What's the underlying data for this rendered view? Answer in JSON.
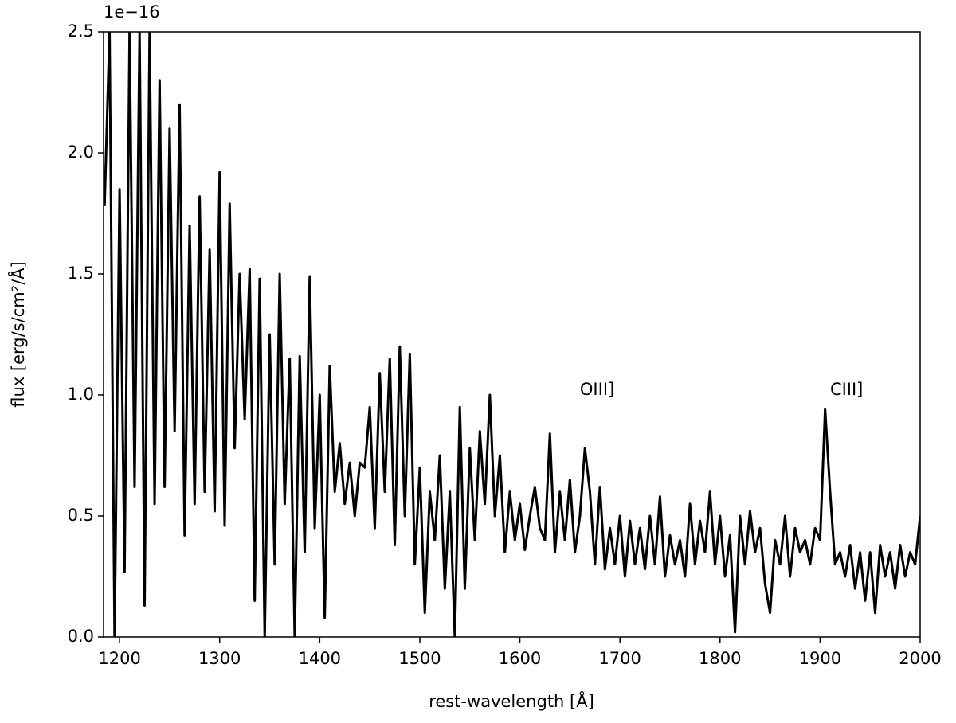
{
  "chart_data": {
    "type": "line",
    "xlabel": "rest-wavelength [Å]",
    "ylabel": "flux [erg/s/cm²/Å]",
    "offset_label": "1e−16",
    "color": "#000000",
    "x": [
      1185,
      1190,
      1195,
      1200,
      1205,
      1210,
      1215,
      1220,
      1225,
      1230,
      1235,
      1240,
      1245,
      1250,
      1255,
      1260,
      1265,
      1270,
      1275,
      1280,
      1285,
      1290,
      1295,
      1300,
      1305,
      1310,
      1315,
      1320,
      1325,
      1330,
      1335,
      1340,
      1345,
      1350,
      1355,
      1360,
      1365,
      1370,
      1375,
      1380,
      1385,
      1390,
      1395,
      1400,
      1405,
      1410,
      1415,
      1420,
      1425,
      1430,
      1435,
      1440,
      1445,
      1450,
      1455,
      1460,
      1465,
      1470,
      1475,
      1480,
      1485,
      1490,
      1495,
      1500,
      1505,
      1510,
      1515,
      1520,
      1525,
      1530,
      1535,
      1540,
      1545,
      1550,
      1555,
      1560,
      1565,
      1570,
      1575,
      1580,
      1585,
      1590,
      1595,
      1600,
      1605,
      1610,
      1615,
      1620,
      1625,
      1630,
      1635,
      1640,
      1645,
      1650,
      1655,
      1660,
      1665,
      1670,
      1675,
      1680,
      1685,
      1690,
      1695,
      1700,
      1705,
      1710,
      1715,
      1720,
      1725,
      1730,
      1735,
      1740,
      1745,
      1750,
      1755,
      1760,
      1765,
      1770,
      1775,
      1780,
      1785,
      1790,
      1795,
      1800,
      1805,
      1810,
      1815,
      1820,
      1825,
      1830,
      1835,
      1840,
      1845,
      1850,
      1855,
      1860,
      1865,
      1870,
      1875,
      1880,
      1885,
      1890,
      1895,
      1900,
      1905,
      1910,
      1915,
      1920,
      1925,
      1930,
      1935,
      1940,
      1945,
      1950,
      1955,
      1960,
      1965,
      1970,
      1975,
      1980,
      1985,
      1990,
      1995,
      2000
    ],
    "values": [
      1.78,
      2.5,
      0.0,
      1.85,
      0.27,
      2.5,
      0.62,
      2.5,
      0.13,
      2.5,
      0.55,
      2.3,
      0.62,
      2.1,
      0.85,
      2.2,
      0.42,
      1.7,
      0.55,
      1.82,
      0.6,
      1.6,
      0.52,
      1.92,
      0.46,
      1.79,
      0.78,
      1.5,
      0.9,
      1.52,
      0.15,
      1.48,
      0.0,
      1.25,
      0.3,
      1.5,
      0.55,
      1.15,
      0.0,
      1.16,
      0.35,
      1.49,
      0.45,
      1.0,
      0.08,
      1.12,
      0.6,
      0.8,
      0.55,
      0.72,
      0.5,
      0.72,
      0.7,
      0.95,
      0.45,
      1.09,
      0.6,
      1.15,
      0.38,
      1.2,
      0.5,
      1.17,
      0.3,
      0.7,
      0.1,
      0.6,
      0.4,
      0.75,
      0.2,
      0.6,
      0.0,
      0.95,
      0.2,
      0.78,
      0.4,
      0.85,
      0.55,
      1.0,
      0.5,
      0.75,
      0.35,
      0.6,
      0.4,
      0.55,
      0.36,
      0.5,
      0.62,
      0.45,
      0.4,
      0.84,
      0.35,
      0.6,
      0.4,
      0.65,
      0.35,
      0.5,
      0.78,
      0.6,
      0.3,
      0.62,
      0.28,
      0.45,
      0.3,
      0.5,
      0.25,
      0.48,
      0.3,
      0.45,
      0.28,
      0.5,
      0.3,
      0.58,
      0.25,
      0.42,
      0.3,
      0.4,
      0.25,
      0.55,
      0.3,
      0.48,
      0.35,
      0.6,
      0.3,
      0.5,
      0.25,
      0.42,
      0.02,
      0.5,
      0.3,
      0.52,
      0.35,
      0.45,
      0.22,
      0.1,
      0.4,
      0.3,
      0.5,
      0.25,
      0.45,
      0.35,
      0.4,
      0.3,
      0.45,
      0.4,
      0.94,
      0.6,
      0.3,
      0.35,
      0.25,
      0.38,
      0.2,
      0.35,
      0.15,
      0.35,
      0.1,
      0.38,
      0.25,
      0.35,
      0.2,
      0.38,
      0.25,
      0.35,
      0.3,
      0.5
    ],
    "xlim": [
      1184,
      2000
    ],
    "ylim": [
      0,
      2.5
    ],
    "xticks": [
      1200,
      1300,
      1400,
      1500,
      1600,
      1700,
      1800,
      1900,
      2000
    ],
    "yticks": [
      {
        "value": 0,
        "label": "0.0"
      },
      0.5,
      {
        "value": 1,
        "label": "1.0"
      },
      1.5,
      {
        "value": 2,
        "label": "2.0"
      },
      2.5
    ],
    "annotations": [
      {
        "text": "OIII]",
        "x": 1660,
        "y": 1.02
      },
      {
        "text": "CIII]",
        "x": 1910,
        "y": 1.02
      }
    ],
    "grid": false
  }
}
